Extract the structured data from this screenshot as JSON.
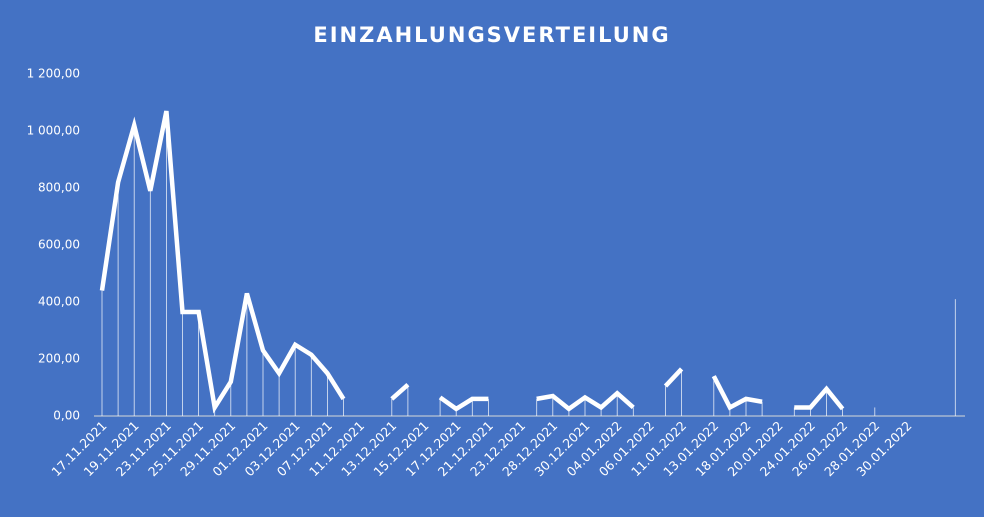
{
  "chart_data": {
    "type": "line",
    "title": "EINZAHLUNGSVERTEILUNG",
    "categories": [
      "17.11.2021",
      null,
      "19.11.2021",
      null,
      "23.11.2021",
      null,
      "25.11.2021",
      null,
      "29.11.2021",
      null,
      "01.12.2021",
      null,
      "03.12.2021",
      null,
      "07.12.2021",
      null,
      "11.12.2021",
      null,
      "13.12.2021",
      null,
      "15.12.2021",
      null,
      "17.12.2021",
      null,
      "21.12.2021",
      null,
      "23.12.2021",
      null,
      "28.12.2021",
      null,
      "30.12.2021",
      null,
      "04.01.2022",
      null,
      "06.01.2022",
      null,
      "11.01.2022",
      null,
      "13.01.2022",
      null,
      "18.01.2022",
      null,
      "20.01.2022",
      null,
      "24.01.2022",
      null,
      "26.01.2022",
      null,
      "28.01.2022",
      null,
      "30.01.2022",
      null,
      null,
      null
    ],
    "series": [
      {
        "color": "#ffffff",
        "values": [
          440,
          820,
          1020,
          790,
          1070,
          365,
          365,
          30,
          120,
          430,
          230,
          150,
          250,
          215,
          150,
          60,
          null,
          null,
          60,
          110,
          null,
          65,
          25,
          60,
          60,
          null,
          null,
          60,
          70,
          25,
          65,
          30,
          80,
          30,
          null,
          105,
          165,
          null,
          140,
          30,
          60,
          50,
          null,
          30,
          30,
          95,
          25,
          null,
          30,
          null,
          null,
          null,
          null,
          410
        ]
      }
    ],
    "ylim": [
      0,
      1200
    ],
    "yticks": [
      {
        "value": 0,
        "label": "0,00"
      },
      {
        "value": 200,
        "label": "200,00"
      },
      {
        "value": 400,
        "label": "400,00"
      },
      {
        "value": 600,
        "label": "600,00"
      },
      {
        "value": 800,
        "label": "800,00"
      },
      {
        "value": 1000,
        "label": "1 000,00"
      },
      {
        "value": 1200,
        "label": "1 200,00"
      }
    ],
    "drop_lines": true,
    "background": "#4472c4"
  }
}
